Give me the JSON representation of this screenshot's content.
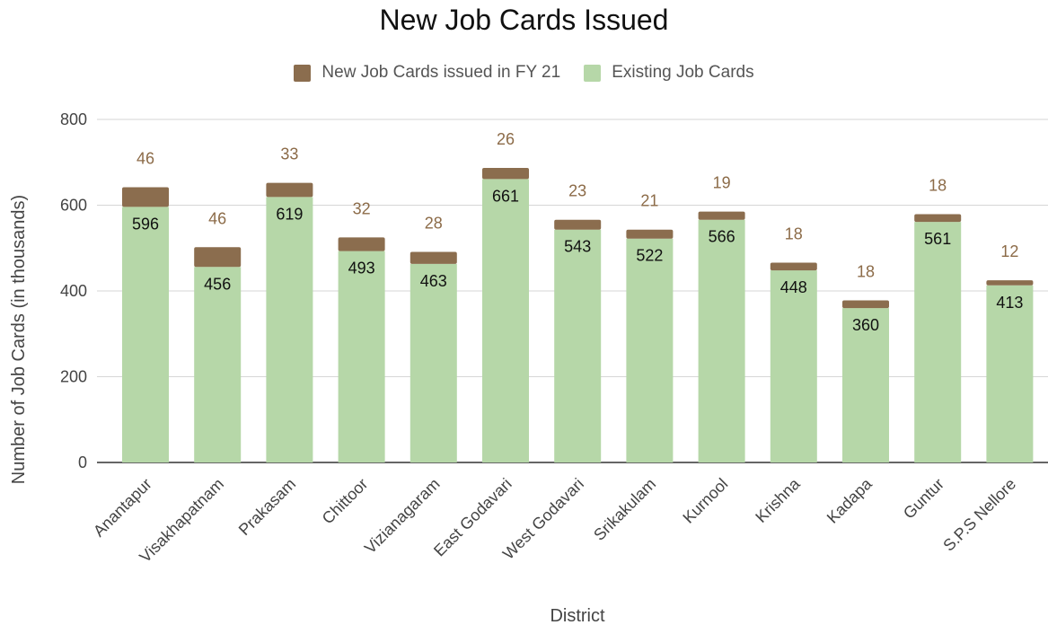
{
  "chart_data": {
    "type": "bar",
    "stacked": true,
    "title": "New Job Cards Issued",
    "xlabel": "District",
    "ylabel": "Number of Job Cards (in thousands)",
    "ylim": [
      0,
      800
    ],
    "yticks": [
      "0",
      "200",
      "400",
      "600",
      "800"
    ],
    "grid": true,
    "legend_position": "top",
    "categories": [
      "Anantapur",
      "Visakhapatnam",
      "Prakasam",
      "Chittoor",
      "Vizianagaram",
      "East Godavari",
      "West Godavari",
      "Srikakulam",
      "Kurnool",
      "Krishna",
      "Kadapa",
      "Guntur",
      "S.P.S Nellore"
    ],
    "series": [
      {
        "name": "Existing Job Cards",
        "color": "#b6d7a8",
        "values": [
          596,
          456,
          619,
          493,
          463,
          661,
          543,
          522,
          566,
          448,
          360,
          561,
          413
        ]
      },
      {
        "name": "New Job Cards issued in FY 21",
        "color": "#8b6d4e",
        "values": [
          46,
          46,
          33,
          32,
          28,
          26,
          23,
          21,
          19,
          18,
          18,
          18,
          12
        ]
      }
    ]
  }
}
